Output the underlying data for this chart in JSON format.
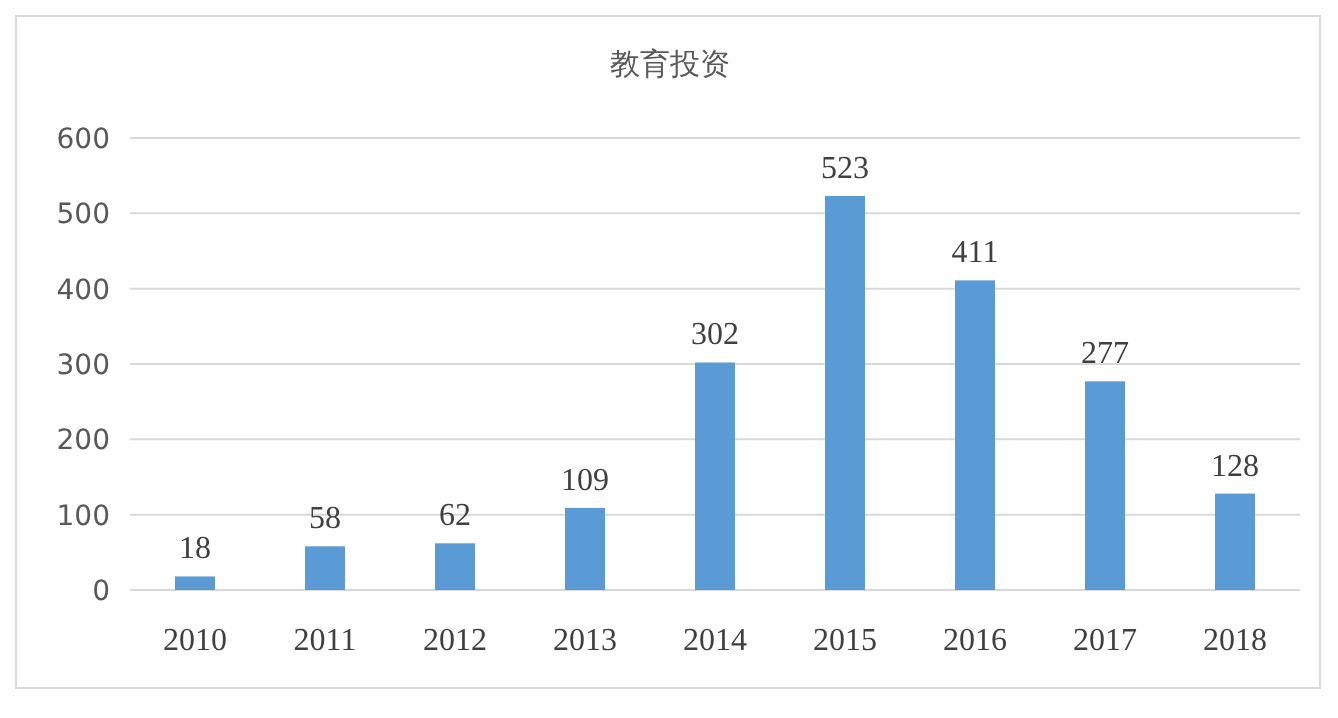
{
  "chart_data": {
    "type": "bar",
    "title": "教育投资",
    "categories": [
      "2010",
      "2011",
      "2012",
      "2013",
      "2014",
      "2015",
      "2016",
      "2017",
      "2018"
    ],
    "values": [
      18,
      58,
      62,
      109,
      302,
      523,
      411,
      277,
      128
    ],
    "color": "#5b9bd5",
    "ylim": [
      0,
      600
    ],
    "yticks": [
      0,
      100,
      200,
      300,
      400,
      500,
      600
    ],
    "grid": "y",
    "data_labels": true
  }
}
